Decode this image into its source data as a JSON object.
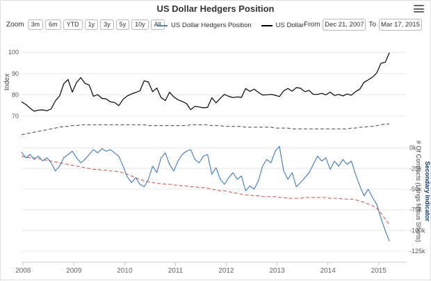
{
  "title": "US Dollar Hedgers Position",
  "toolbar": {
    "zoom_label": "Zoom",
    "zoom_buttons": [
      "3m",
      "6m",
      "YTD",
      "1y",
      "3y",
      "5y",
      "10y",
      "All"
    ],
    "from_label": "From",
    "from_value": "Dec 21, 2007",
    "to_label": "To",
    "to_value": "Mar 17, 2015"
  },
  "legend": [
    {
      "label": "US Dollar Hedgers Position",
      "color": "#4f81b6"
    },
    {
      "label": "US Dollar",
      "color": "#000000"
    }
  ],
  "colors": {
    "gridline": "#e6e6e6",
    "axis_line": "#c8c8c8",
    "tick_text": "#555555",
    "secondary_indicator_text": "#123a63"
  },
  "chart_data": {
    "type": "line",
    "x_start": "Dec 21, 2007",
    "x_end": "Mar 17, 2015",
    "x_tick_labels": [
      "2008",
      "2009",
      "2010",
      "2011",
      "2012",
      "2013",
      "2014",
      "2015"
    ],
    "panels": [
      {
        "name": "us-dollar-index-panel",
        "axis_title": "Index",
        "ylim": [
          68,
          104
        ],
        "y_ticks": [
          {
            "v": 100,
            "label": "100"
          },
          {
            "v": 90,
            "label": "90"
          },
          {
            "v": 80,
            "label": "80"
          },
          {
            "v": 70,
            "label": "70"
          }
        ],
        "series": [
          {
            "name": "US Dollar",
            "color": "#000000",
            "dash": "solid",
            "width": 1.2,
            "values": [
              76.7,
              75.5,
              73.7,
              72.3,
              72.8,
              72.9,
              72.5,
              73.4,
              77.2,
              79.5,
              85.2,
              87.2,
              81.3,
              85.8,
              88.1,
              85.4,
              84.6,
              79.3,
              80.1,
              78.3,
              78.1,
              76.7,
              76.4,
              74.9,
              77.9,
              79.5,
              80.4,
              81.1,
              81.9,
              86.6,
              86.0,
              81.5,
              83.2,
              78.7,
              77.3,
              81.2,
              79.0,
              77.7,
              76.9,
              75.9,
              73.0,
              74.6,
              74.3,
              73.9,
              74.1,
              78.6,
              76.2,
              78.4,
              80.2,
              79.3,
              78.7,
              79.0,
              78.8,
              83.0,
              81.6,
              82.7,
              81.2,
              79.9,
              80.0,
              80.2,
              79.8,
              79.2,
              81.9,
              83.0,
              81.7,
              83.4,
              83.1,
              81.5,
              82.1,
              80.2,
              80.2,
              80.7,
              80.0,
              81.3,
              79.7,
              80.2,
              79.5,
              80.4,
              79.8,
              81.5,
              82.7,
              85.9,
              87.0,
              88.3,
              90.3,
              94.8,
              95.3,
              99.8
            ]
          }
        ]
      },
      {
        "name": "hedgers-position-panel",
        "axis_title_right": "# Of Contracts (Longs Minus Shorts)",
        "axis_title_right_secondary": "Secondary Indicator",
        "unit": "thousands of contracts",
        "ylim": [
          -135,
          30
        ],
        "y_ticks": [
          {
            "v": 0,
            "label": "0k"
          },
          {
            "v": -25,
            "label": "-25k"
          },
          {
            "v": -50,
            "label": "-50k"
          },
          {
            "v": -75,
            "label": "-75k"
          },
          {
            "v": -100,
            "label": "-100k"
          },
          {
            "v": -125,
            "label": "-125k"
          }
        ],
        "series": [
          {
            "name": "US Dollar Hedgers Position",
            "color": "#4f81b6",
            "dash": "solid",
            "width": 1.2,
            "values": [
              -5,
              -12,
              -8,
              -14,
              -10,
              -16,
              -12,
              -18,
              -28,
              -22,
              -12,
              -8,
              -4,
              -12,
              -18,
              -14,
              -8,
              -2,
              -6,
              -1,
              -4,
              -2,
              -6,
              -10,
              -22,
              -35,
              -42,
              -36,
              -44,
              -47,
              -38,
              -22,
              -30,
              -12,
              -6,
              -20,
              -28,
              -16,
              -8,
              -4,
              -2,
              -14,
              -18,
              -10,
              -8,
              -32,
              -24,
              -38,
              -44,
              -36,
              -30,
              -38,
              -34,
              -52,
              -46,
              -50,
              -40,
              -22,
              -14,
              -18,
              -4,
              2,
              -28,
              -38,
              -30,
              -47,
              -42,
              -36,
              -30,
              -20,
              -10,
              -16,
              -12,
              -26,
              -16,
              -22,
              -14,
              -20,
              -16,
              -32,
              -46,
              -58,
              -50,
              -60,
              -68,
              -85,
              -100,
              -113
            ]
          },
          {
            "name": "upper-dashed-band",
            "color": "#444444",
            "dash": "dashed",
            "width": 1,
            "values": [
              16,
              17,
              18,
              19,
              20,
              21,
              22,
              23,
              24,
              25,
              26,
              26,
              27,
              27,
              28,
              28,
              28,
              28,
              28,
              28,
              28,
              28,
              28,
              28,
              28,
              28,
              28,
              28,
              28,
              28,
              27,
              27,
              27,
              27,
              27,
              27,
              27,
              27,
              27,
              27,
              28,
              28,
              28,
              28,
              28,
              27,
              27,
              27,
              26,
              26,
              26,
              26,
              26,
              25,
              25,
              25,
              25,
              25,
              25,
              25,
              24,
              24,
              24,
              24,
              23,
              23,
              23,
              23,
              23,
              23,
              23,
              23,
              23,
              23,
              23,
              23,
              23,
              23,
              24,
              24,
              25,
              25,
              26,
              26,
              27,
              28,
              29,
              29
            ]
          },
          {
            "name": "lower-dashed-band",
            "color": "#c0504d",
            "dash": "dashed",
            "width": 1,
            "values": [
              -10,
              -11,
              -12,
              -12,
              -13,
              -14,
              -15,
              -16,
              -17,
              -18,
              -19,
              -20,
              -21,
              -22,
              -23,
              -24,
              -25,
              -26,
              -26,
              -27,
              -27,
              -28,
              -28,
              -29,
              -30,
              -32,
              -34,
              -36,
              -38,
              -40,
              -41,
              -42,
              -43,
              -43,
              -44,
              -44,
              -45,
              -45,
              -46,
              -46,
              -47,
              -47,
              -48,
              -48,
              -49,
              -50,
              -51,
              -52,
              -52,
              -53,
              -54,
              -55,
              -56,
              -57,
              -57,
              -58,
              -58,
              -59,
              -59,
              -59,
              -59,
              -60,
              -60,
              -61,
              -61,
              -61,
              -61,
              -60,
              -60,
              -60,
              -60,
              -60,
              -60,
              -61,
              -61,
              -61,
              -62,
              -62,
              -62,
              -63,
              -64,
              -66,
              -68,
              -70,
              -73,
              -79,
              -86,
              -93
            ]
          }
        ]
      }
    ]
  }
}
